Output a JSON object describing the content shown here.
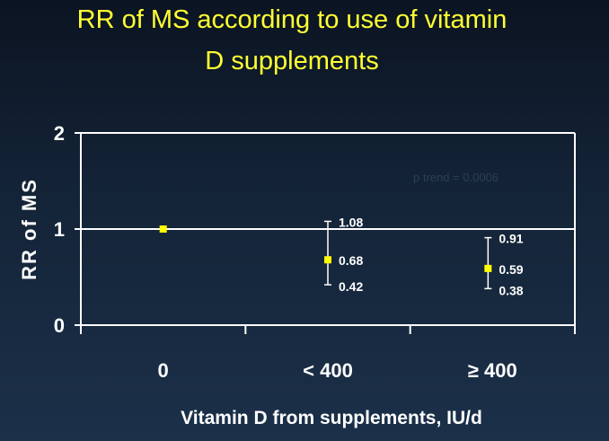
{
  "chart_data": {
    "type": "scatter",
    "title_lines": [
      "RR of MS according to use of vitamin",
      "D supplements"
    ],
    "xlabel": "Vitamin D from supplements, IU/d",
    "ylabel": "RR of MS",
    "categories": [
      "0",
      "< 400",
      "≥ 400"
    ],
    "yticks": [
      "0",
      "1",
      "2"
    ],
    "ylim": [
      0,
      2
    ],
    "reference_line": 1,
    "grid": false,
    "annotation": "p trend = 0.0006",
    "points": [
      {
        "category": "0",
        "rr": 1.0,
        "rr_label": "",
        "lower": null,
        "lower_label": "",
        "upper": null,
        "upper_label": ""
      },
      {
        "category": "< 400",
        "rr": 0.68,
        "rr_label": "0.68",
        "lower": 0.42,
        "lower_label": "0.42",
        "upper": 1.08,
        "upper_label": "1.08"
      },
      {
        "category": "≥ 400",
        "rr": 0.59,
        "rr_label": "0.59",
        "lower": 0.38,
        "lower_label": "0.38",
        "upper": 0.91,
        "upper_label": "0.91"
      }
    ],
    "colors": {
      "marker": "#ffff00",
      "title": "#ffff33",
      "axis": "#ffffff",
      "background": "#142438"
    }
  }
}
